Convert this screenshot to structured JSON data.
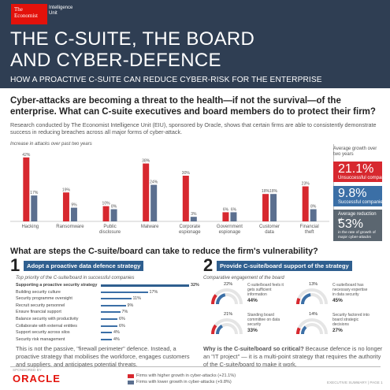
{
  "header": {
    "logo_economist": "The Economist",
    "logo_unit": "Intelligence Unit",
    "title_line1": "THE C-SUITE, THE BOARD",
    "title_line2": "AND CYBER-DEFENCE",
    "subtitle": "HOW A PROACTIVE C-SUITE CAN REDUCE CYBER-RISK FOR THE ENTERPRISE"
  },
  "section1": {
    "question": "Cyber-attacks are becoming a threat to the health—if not the survival—of the enterprise. What can C-suite executives and board members do to protect their firm?",
    "intro": "Research conducted by The Economist Intelligence Unit (EIU), sponsored by Oracle, shows that certain firms are able to consistently demonstrate success in reducing breaches across all major forms of cyber-attack."
  },
  "chart_data": {
    "type": "bar",
    "title": "Increase in attacks over past two years",
    "categories": [
      "Hacking",
      "Ransomware",
      "Public disclosure",
      "Malware",
      "Corporate espionage",
      "Government espionage",
      "Customer data",
      "Financial theft"
    ],
    "series": [
      {
        "name": "Firms with higher growth in cyber-attacks (+21.1%)",
        "color": "#d7282f",
        "values": [
          42,
          19,
          10,
          38,
          30,
          6,
          18,
          23
        ]
      },
      {
        "name": "Firms with lower growth in cyber-attacks (+9.8%)",
        "color": "#5b6f8f",
        "values": [
          17,
          9,
          8,
          24,
          3,
          6,
          18,
          8
        ]
      }
    ],
    "labels_red": [
      "42%",
      "19%",
      "10%",
      "38%",
      "30%",
      "6%",
      "18%",
      "23%"
    ],
    "labels_blue": [
      "17%",
      "9%",
      "8%",
      "24%",
      "3%",
      "6%",
      "18%",
      "8%"
    ],
    "ylim": [
      0,
      45
    ]
  },
  "sidebar": {
    "heading": "Average growth over two years",
    "stat1_value": "21.1%",
    "stat1_label": "Unsuccessful companies",
    "stat2_value": "9.8%",
    "stat2_label": "Successful companies",
    "stat3_heading": "Average reduction of",
    "stat3_value": "53%",
    "stat3_label": "in the rate of growth of major cyber-attacks"
  },
  "section2": {
    "question": "What are steps the C-suite/board can take to reduce the firm's vulnerability?",
    "step1_num": "1",
    "step1_title": "Adopt a proactive data defence strategy",
    "step1_caption": "Top priority of the C-suite/board in successful companies",
    "priorities": [
      {
        "label": "Supporting a proactive security strategy",
        "value": 32,
        "value_label": "32%"
      },
      {
        "label": "Building security culture",
        "value": 17,
        "value_label": "17%"
      },
      {
        "label": "Security programme oversight",
        "value": 11,
        "value_label": "11%"
      },
      {
        "label": "Recruit security personnel",
        "value": 9,
        "value_label": "9%"
      },
      {
        "label": "Ensure financial support",
        "value": 7,
        "value_label": "7%"
      },
      {
        "label": "Balance security with productivity",
        "value": 6,
        "value_label": "6%"
      },
      {
        "label": "Collaborate with external entities",
        "value": 6,
        "value_label": "6%"
      },
      {
        "label": "Support security across silos",
        "value": 4,
        "value_label": "4%"
      },
      {
        "label": "Security risk management",
        "value": 4,
        "value_label": "4%"
      }
    ],
    "step1_text": "This is not the passive, \"firewall perimeter\" defence. Instead, a proactive strategy that mobilises the workforce, engages customers and suppliers, and anticipates potential threats.",
    "step2_num": "2",
    "step2_title": "Provide C-suite/board support of the strategy",
    "step2_caption": "Comparative engagement of the board",
    "gauges": [
      {
        "label": "C-suite/board feels it gets sufficient information",
        "red": "22%",
        "blue": "44%",
        "red_frac": 0.22,
        "blue_frac": 0.44
      },
      {
        "label": "C-suite/board has necessary expertise in data security",
        "red": "13%",
        "blue": "45%",
        "red_frac": 0.13,
        "blue_frac": 0.45
      },
      {
        "label": "Standing board committee on data security",
        "red": "21%",
        "blue": "33%",
        "red_frac": 0.21,
        "blue_frac": 0.33
      },
      {
        "label": "Security factored into board strategic decisions",
        "red": "14%",
        "blue": "27%",
        "red_frac": 0.14,
        "blue_frac": 0.27
      }
    ],
    "step2_text_bold": "Why is the C-suite/board so critical?",
    "step2_text": "Because defence is no longer an \"IT project\" — it is a multi-point strategy that requires the authority of the C-suite/board to make it work."
  },
  "footer": {
    "sponsored": "SPONSORED BY",
    "oracle": "ORACLE",
    "legend_red": "Firms with higher growth in cyber-attacks (+21.1%)",
    "legend_blue": "Firms with lower growth in cyber-attacks (+9.8%)",
    "exec": "EXECUTIVE SUMMARY  |  PAGE 1"
  }
}
